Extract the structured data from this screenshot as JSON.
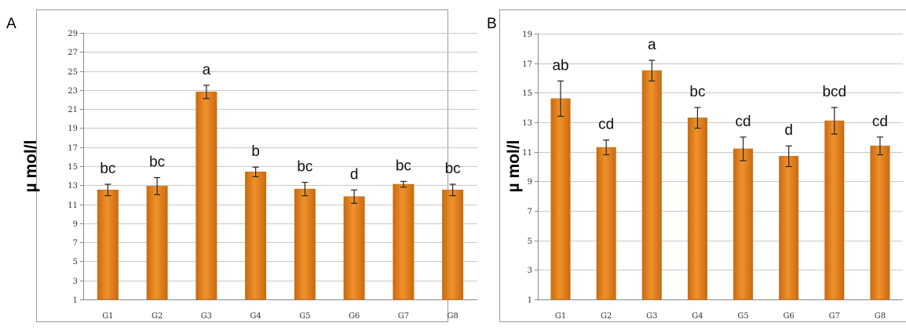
{
  "panels": [
    {
      "letter": "A",
      "colors": {
        "bar_fill": "#f0922b",
        "bar_edge": "#c96a10",
        "grid": "#c8c8c8",
        "frame": "#9a9a9a"
      },
      "chart_data": {
        "type": "bar",
        "categories": [
          "G1",
          "G2",
          "G3",
          "G4",
          "G5",
          "G6",
          "G7",
          "G8"
        ],
        "values": [
          12.5,
          12.9,
          22.8,
          14.4,
          12.6,
          11.8,
          13.1,
          12.5
        ],
        "errors": [
          0.6,
          0.9,
          0.7,
          0.5,
          0.7,
          0.7,
          0.3,
          0.6
        ],
        "significance": [
          "bc",
          "bc",
          "a",
          "b",
          "bc",
          "d",
          "bc",
          "bc"
        ],
        "ylabel": "µ mol/l",
        "ylim": [
          1,
          29
        ],
        "yticks": [
          1,
          3,
          5,
          7,
          9,
          11,
          13,
          15,
          17,
          19,
          21,
          23,
          25,
          27,
          29
        ],
        "grid": true,
        "legend": "none"
      }
    },
    {
      "letter": "B",
      "colors": {
        "bar_fill": "#f0922b",
        "bar_edge": "#c96a10",
        "grid": "#c8c8c8",
        "frame": "#9a9a9a"
      },
      "chart_data": {
        "type": "bar",
        "categories": [
          "G1",
          "G2",
          "G3",
          "G4",
          "G5",
          "G6",
          "G7",
          "G8"
        ],
        "values": [
          14.6,
          11.3,
          16.5,
          13.3,
          11.2,
          10.7,
          13.1,
          11.4
        ],
        "errors": [
          1.2,
          0.5,
          0.7,
          0.7,
          0.8,
          0.7,
          0.9,
          0.6
        ],
        "significance": [
          "ab",
          "cd",
          "a",
          "bc",
          "cd",
          "d",
          "bcd",
          "cd"
        ],
        "ylabel": "µ mol/l",
        "ylim": [
          1,
          19
        ],
        "yticks": [
          1,
          3,
          5,
          7,
          9,
          11,
          13,
          15,
          17,
          19
        ],
        "grid": true,
        "legend": "none"
      }
    }
  ]
}
